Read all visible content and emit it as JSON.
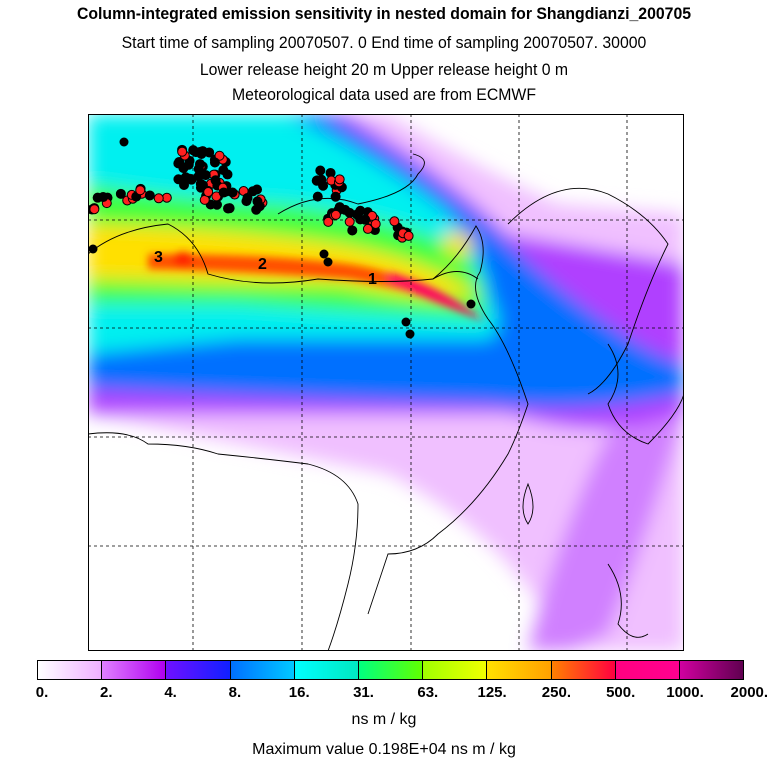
{
  "header": {
    "title": "Column-integrated emission sensitivity in nested domain for Shangdianzi_200705",
    "line2": "Start time of sampling 20070507.     0     End time of sampling 20070507. 30000",
    "line3": "Lower release height   20 m          Upper release height    0 m",
    "line4": "Meteorological data used are from ECMWF"
  },
  "map": {
    "labels": [
      "1",
      "2",
      "3"
    ],
    "plume_colors": {
      "outer": "#f0c0ff",
      "violet": "#c000ff",
      "blue": "#0060ff",
      "cyan": "#00e0ff",
      "green": "#40ff40",
      "yellow": "#ffe000",
      "orange": "#ff6000",
      "red": "#ff0060"
    },
    "dot_colors": {
      "black": "#000000",
      "red": "#ff2020"
    }
  },
  "colorbar": {
    "ticks": [
      "0.",
      "2.",
      "4.",
      "8.",
      "16.",
      "31.",
      "63.",
      "125.",
      "250.",
      "500.",
      "1000.",
      "2000."
    ],
    "segments": [
      [
        "#ffffff",
        "#f0b0ff"
      ],
      [
        "#e080ff",
        "#b000f0"
      ],
      [
        "#7010ff",
        "#1020ff"
      ],
      [
        "#0070ff",
        "#00c8ff"
      ],
      [
        "#00ffff",
        "#00e8c0"
      ],
      [
        "#00ff80",
        "#60ff00"
      ],
      [
        "#a0ff00",
        "#f0ff00"
      ],
      [
        "#ffe000",
        "#ffa000"
      ],
      [
        "#ff8000",
        "#ff0040"
      ],
      [
        "#ff0080",
        "#ff0090"
      ],
      [
        "#d000a0",
        "#600050"
      ]
    ],
    "units": "ns m / kg",
    "max_value": "Maximum value  0.198E+04 ns m / kg"
  }
}
